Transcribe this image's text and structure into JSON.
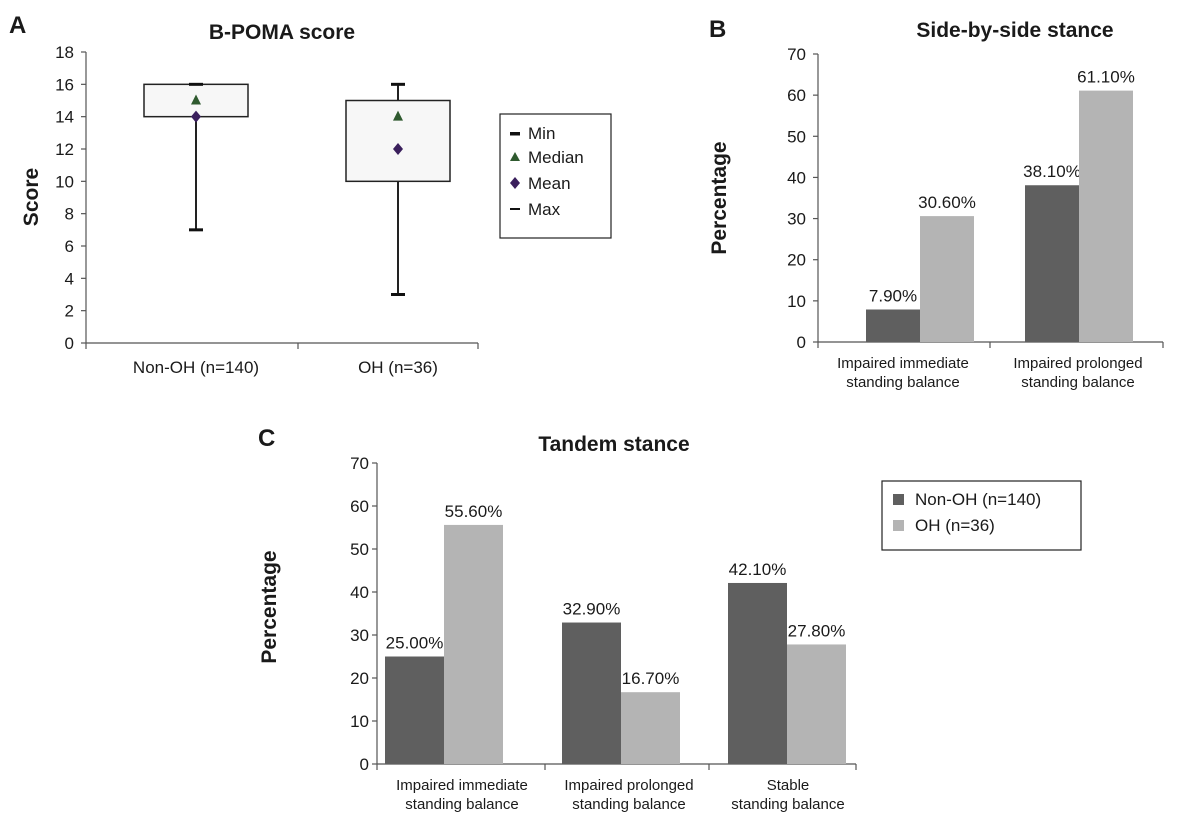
{
  "colors": {
    "non_oh": "#5f5f5f",
    "oh": "#b4b4b4",
    "box_fill": "#f7f7f7",
    "median_marker": "#2f5a2f",
    "mean_marker": "#3a1f5c"
  },
  "chart_data": [
    {
      "panel": "A",
      "type": "box",
      "title": "B-POMA score",
      "ylabel": "Score",
      "ylim": [
        0,
        18
      ],
      "yticks": [
        0,
        2,
        4,
        6,
        8,
        10,
        12,
        14,
        16,
        18
      ],
      "categories": [
        "Non-OH (n=140)",
        "OH (n=36)"
      ],
      "boxes": [
        {
          "min": 7,
          "q1": 14,
          "median": 15,
          "mean": 14,
          "q3": 16,
          "max": 16
        },
        {
          "min": 3,
          "q1": 10,
          "median": 14,
          "mean": 12,
          "q3": 15,
          "max": 16
        }
      ],
      "legend": [
        "Min",
        "Median",
        "Mean",
        "Max"
      ],
      "legend_position": "right"
    },
    {
      "panel": "B",
      "type": "bar",
      "title": "Side-by-side stance",
      "ylabel": "Percentage",
      "ylim": [
        0,
        70
      ],
      "yticks": [
        0,
        10,
        20,
        30,
        40,
        50,
        60,
        70
      ],
      "categories": [
        [
          "Impaired immediate",
          "standing balance"
        ],
        [
          "Impaired prolonged",
          "standing balance"
        ]
      ],
      "series": [
        {
          "values": [
            7.9,
            38.1
          ],
          "labels": [
            "7.90%",
            "38.10%"
          ]
        },
        {
          "values": [
            30.6,
            61.1
          ],
          "labels": [
            "30.60%",
            "61.10%"
          ]
        }
      ]
    },
    {
      "panel": "C",
      "type": "bar",
      "title": "Tandem stance",
      "ylabel": "Percentage",
      "ylim": [
        0,
        70
      ],
      "yticks": [
        0,
        10,
        20,
        30,
        40,
        50,
        60,
        70
      ],
      "categories": [
        [
          "Impaired immediate",
          "standing balance"
        ],
        [
          "Impaired prolonged",
          "standing balance"
        ],
        [
          "Stable",
          "standing balance"
        ]
      ],
      "series": [
        {
          "name": "Non-OH (n=140)",
          "values": [
            25.0,
            32.9,
            42.1
          ],
          "labels": [
            "25.00%",
            "32.90%",
            "42.10%"
          ]
        },
        {
          "name": "OH (n=36)",
          "values": [
            55.6,
            16.7,
            27.8
          ],
          "labels": [
            "55.60%",
            "16.70%",
            "27.80%"
          ]
        }
      ],
      "legend_position": "right"
    }
  ]
}
